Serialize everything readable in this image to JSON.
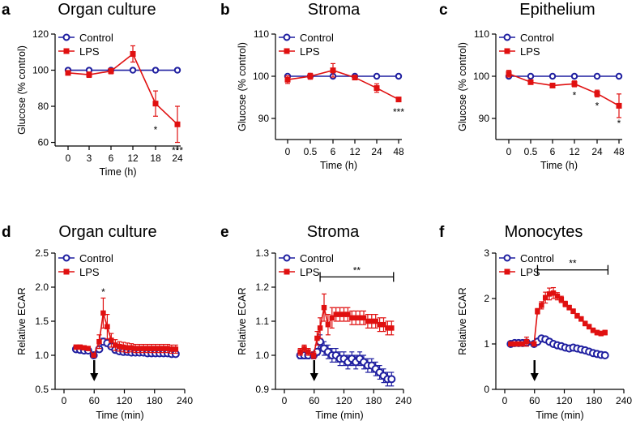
{
  "colors": {
    "control": "#1f1fa0",
    "lps": "#e01010",
    "axis": "#000000"
  },
  "chart_data": [
    {
      "type": "line",
      "letter": "a",
      "title": "Organ culture",
      "xlabel": "Time (h)",
      "ylabel": "Glucose (% control)",
      "categories": [
        "0",
        "3",
        "6",
        "12",
        "18",
        "24"
      ],
      "ylim": [
        58,
        120
      ],
      "yticks": [
        60,
        80,
        100,
        120
      ],
      "legend": [
        "Control",
        "LPS"
      ],
      "series": [
        {
          "name": "Control",
          "values": [
            100,
            100,
            100,
            100,
            100,
            100
          ],
          "err": [
            0,
            0,
            0,
            0,
            0,
            0
          ]
        },
        {
          "name": "LPS",
          "values": [
            98.5,
            97.5,
            99.5,
            109,
            81.5,
            70
          ],
          "err": [
            1,
            1.5,
            1.5,
            4.5,
            7,
            10
          ]
        }
      ],
      "annotations": [
        {
          "text": "*",
          "at": 4,
          "value": 67
        },
        {
          "text": "***",
          "at": 5,
          "value": 55.5
        }
      ]
    },
    {
      "type": "line",
      "letter": "b",
      "title": "Stroma",
      "xlabel": "Time (h)",
      "ylabel": "Glucose (% control)",
      "categories": [
        "0",
        "0.5",
        "6",
        "12",
        "24",
        "48"
      ],
      "ylim": [
        85,
        110
      ],
      "yticks": [
        90,
        100,
        110
      ],
      "legend": [
        "Control",
        "LPS"
      ],
      "series": [
        {
          "name": "Control",
          "values": [
            100,
            100,
            100,
            100,
            100,
            100
          ],
          "err": [
            0,
            0,
            0,
            0,
            0,
            0
          ]
        },
        {
          "name": "LPS",
          "values": [
            99.2,
            100,
            101.4,
            99.7,
            97.2,
            94.5
          ],
          "err": [
            0.9,
            0.7,
            1.6,
            0.2,
            1,
            0.3
          ]
        }
      ],
      "annotations": [
        {
          "text": "***",
          "at": 5,
          "value": 91.5
        }
      ]
    },
    {
      "type": "line",
      "letter": "c",
      "title": "Epithelium",
      "xlabel": "Time (h)",
      "ylabel": "Glucose (% control)",
      "categories": [
        "0",
        "0.5",
        "6",
        "12",
        "24",
        "48"
      ],
      "ylim": [
        85,
        110
      ],
      "yticks": [
        90,
        100,
        110
      ],
      "legend": [
        "Control",
        "LPS"
      ],
      "series": [
        {
          "name": "Control",
          "values": [
            100,
            100,
            100,
            100,
            100,
            100
          ],
          "err": [
            0,
            0,
            0,
            0,
            0,
            0
          ]
        },
        {
          "name": "LPS",
          "values": [
            100.6,
            98.6,
            97.8,
            98.2,
            95.9,
            93
          ],
          "err": [
            0.8,
            0.3,
            0.3,
            0.7,
            0.8,
            2.8
          ]
        }
      ],
      "annotations": [
        {
          "text": "*",
          "at": 3,
          "value": 95.5
        },
        {
          "text": "*",
          "at": 4,
          "value": 93
        },
        {
          "text": "*",
          "at": 5,
          "value": 88.8
        }
      ]
    },
    {
      "type": "line",
      "letter": "d",
      "title": "Organ culture",
      "xlabel": "Time (min)",
      "ylabel": "Relative ECAR",
      "xlim": [
        0,
        240
      ],
      "xticks": [
        0,
        60,
        120,
        180,
        240
      ],
      "ylim": [
        0.5,
        2.5
      ],
      "ytick_labels": [
        "0.5",
        "1.0",
        "1.5",
        "2.0",
        "2.5"
      ],
      "legend": [
        "Control",
        "LPS"
      ],
      "injection_time": 60,
      "series": [
        {
          "name": "Control",
          "x": [
            24,
            32,
            40,
            48,
            59,
            70,
            78,
            86,
            94,
            102,
            110,
            118,
            126,
            134,
            142,
            150,
            158,
            166,
            174,
            182,
            190,
            198,
            206,
            214,
            222
          ],
          "values": [
            1.09,
            1.08,
            1.07,
            1.07,
            1.0,
            1.09,
            1.2,
            1.18,
            1.13,
            1.08,
            1.06,
            1.05,
            1.05,
            1.04,
            1.04,
            1.04,
            1.04,
            1.03,
            1.03,
            1.03,
            1.03,
            1.03,
            1.03,
            1.02,
            1.02
          ],
          "err": [
            0.02,
            0.02,
            0.02,
            0.02,
            0.02,
            0.04,
            0.05,
            0.05,
            0.04,
            0.03,
            0.03,
            0.03,
            0.03,
            0.03,
            0.03,
            0.03,
            0.03,
            0.03,
            0.03,
            0.03,
            0.03,
            0.03,
            0.03,
            0.03,
            0.03
          ]
        },
        {
          "name": "LPS",
          "x": [
            24,
            32,
            40,
            48,
            59,
            70,
            78,
            86,
            94,
            102,
            110,
            118,
            126,
            134,
            142,
            150,
            158,
            166,
            174,
            182,
            190,
            198,
            206,
            214,
            222
          ],
          "values": [
            1.12,
            1.12,
            1.11,
            1.1,
            1.0,
            1.2,
            1.62,
            1.42,
            1.22,
            1.15,
            1.13,
            1.12,
            1.11,
            1.11,
            1.1,
            1.1,
            1.1,
            1.1,
            1.1,
            1.1,
            1.1,
            1.1,
            1.1,
            1.09,
            1.09
          ],
          "err": [
            0.03,
            0.03,
            0.03,
            0.03,
            0.02,
            0.1,
            0.22,
            0.18,
            0.1,
            0.08,
            0.07,
            0.07,
            0.07,
            0.06,
            0.06,
            0.06,
            0.06,
            0.06,
            0.06,
            0.06,
            0.06,
            0.06,
            0.06,
            0.06,
            0.06
          ]
        }
      ],
      "annotations": [
        {
          "text": "*",
          "x": 78,
          "value": 1.93
        }
      ]
    },
    {
      "type": "line",
      "letter": "e",
      "title": "Stroma",
      "xlabel": "Time (min)",
      "ylabel": "Relative ECAR",
      "xlim": [
        0,
        240
      ],
      "xticks": [
        0,
        60,
        120,
        180,
        240
      ],
      "ylim": [
        0.9,
        1.3
      ],
      "ytick_labels": [
        "0.9",
        "1.0",
        "1.1",
        "1.2",
        "1.3"
      ],
      "legend": [
        "Control",
        "LPS"
      ],
      "injection_time": 60,
      "significance": {
        "label": "**",
        "from": 72,
        "to": 220,
        "value": 1.23
      },
      "series": [
        {
          "name": "Control",
          "x": [
            32,
            40,
            48,
            59,
            66,
            72,
            80,
            88,
            96,
            104,
            112,
            120,
            128,
            136,
            144,
            152,
            160,
            168,
            176,
            184,
            192,
            200,
            208,
            216
          ],
          "values": [
            1.0,
            1.0,
            1.0,
            1.0,
            1.01,
            1.04,
            1.02,
            1.01,
            1.0,
            1.0,
            0.99,
            0.99,
            0.98,
            0.99,
            0.98,
            0.99,
            0.98,
            0.97,
            0.97,
            0.96,
            0.95,
            0.94,
            0.93,
            0.93
          ],
          "err": [
            0.01,
            0.01,
            0.01,
            0.01,
            0.01,
            0.02,
            0.02,
            0.02,
            0.02,
            0.02,
            0.02,
            0.02,
            0.02,
            0.02,
            0.02,
            0.02,
            0.02,
            0.02,
            0.02,
            0.02,
            0.02,
            0.02,
            0.02,
            0.02
          ]
        },
        {
          "name": "LPS",
          "x": [
            32,
            40,
            48,
            59,
            66,
            72,
            80,
            88,
            96,
            104,
            112,
            120,
            128,
            136,
            144,
            152,
            160,
            168,
            176,
            184,
            192,
            200,
            208,
            216
          ],
          "values": [
            1.01,
            1.02,
            1.01,
            1.0,
            1.05,
            1.08,
            1.14,
            1.09,
            1.11,
            1.12,
            1.12,
            1.12,
            1.12,
            1.11,
            1.11,
            1.11,
            1.11,
            1.1,
            1.1,
            1.1,
            1.09,
            1.09,
            1.08,
            1.08
          ],
          "err": [
            0.01,
            0.01,
            0.01,
            0.01,
            0.02,
            0.03,
            0.04,
            0.03,
            0.03,
            0.02,
            0.02,
            0.02,
            0.02,
            0.02,
            0.02,
            0.02,
            0.02,
            0.02,
            0.02,
            0.02,
            0.02,
            0.02,
            0.02,
            0.02
          ]
        }
      ]
    },
    {
      "type": "line",
      "letter": "f",
      "title": "Monocytes",
      "xlabel": "Time (min)",
      "ylabel": "Relative ECAR",
      "xlim": [
        0,
        240
      ],
      "xticks": [
        0,
        60,
        120,
        180,
        240
      ],
      "ylim": [
        0,
        3
      ],
      "ytick_labels": [
        "0",
        "1",
        "2",
        "3"
      ],
      "legend": [
        "Control",
        "LPS"
      ],
      "injection_time": 60,
      "significance": {
        "label": "**",
        "from": 66,
        "to": 208,
        "value": 2.63
      },
      "series": [
        {
          "name": "Control",
          "x": [
            12,
            20,
            28,
            36,
            44,
            59,
            66,
            74,
            82,
            90,
            98,
            106,
            114,
            122,
            130,
            138,
            146,
            154,
            162,
            170,
            178,
            186,
            194,
            202
          ],
          "values": [
            1.0,
            1.02,
            1.02,
            1.02,
            1.03,
            1.0,
            1.05,
            1.12,
            1.1,
            1.05,
            1.0,
            0.97,
            0.95,
            0.92,
            0.9,
            0.92,
            0.9,
            0.88,
            0.86,
            0.83,
            0.8,
            0.78,
            0.76,
            0.75
          ],
          "err": [
            0.03,
            0.03,
            0.03,
            0.03,
            0.03,
            0.03,
            0.05,
            0.05,
            0.05,
            0.05,
            0.05,
            0.05,
            0.05,
            0.05,
            0.05,
            0.05,
            0.05,
            0.05,
            0.05,
            0.05,
            0.05,
            0.05,
            0.05,
            0.05
          ]
        },
        {
          "name": "LPS",
          "x": [
            12,
            20,
            28,
            36,
            44,
            59,
            66,
            74,
            82,
            90,
            98,
            106,
            114,
            122,
            130,
            138,
            146,
            154,
            162,
            170,
            178,
            186,
            194,
            202
          ],
          "values": [
            1.0,
            1.0,
            1.0,
            1.0,
            1.05,
            1.0,
            1.72,
            1.85,
            2.02,
            2.1,
            2.12,
            2.05,
            1.98,
            1.88,
            1.8,
            1.72,
            1.62,
            1.55,
            1.45,
            1.38,
            1.3,
            1.25,
            1.23,
            1.25
          ],
          "err": [
            0.04,
            0.04,
            0.04,
            0.04,
            0.1,
            0.04,
            0.06,
            0.08,
            0.12,
            0.13,
            0.12,
            0.08,
            0.07,
            0.06,
            0.05,
            0.05,
            0.05,
            0.05,
            0.05,
            0.05,
            0.05,
            0.05,
            0.05,
            0.05
          ]
        }
      ]
    }
  ]
}
